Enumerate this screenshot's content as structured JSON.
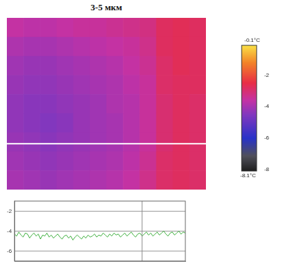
{
  "chart_data": [
    {
      "type": "heatmap",
      "title": "3-5 мкм",
      "cells": [
        [
          -3.6,
          -3.7,
          -3.7,
          -3.6,
          -3.5,
          -3.5,
          -3.4,
          -3.3,
          -3.2,
          -2.8,
          -2.7,
          -2.8
        ],
        [
          -3.9,
          -4.0,
          -4.0,
          -3.9,
          -3.8,
          -3.7,
          -3.6,
          -3.5,
          -3.3,
          -2.8,
          -2.7,
          -2.8
        ],
        [
          -4.1,
          -4.2,
          -4.2,
          -4.1,
          -4.0,
          -3.9,
          -3.8,
          -3.6,
          -3.4,
          -2.9,
          -2.7,
          -2.8
        ],
        [
          -4.2,
          -4.3,
          -4.3,
          -4.2,
          -4.1,
          -4.0,
          -3.9,
          -3.7,
          -3.5,
          -2.9,
          -2.8,
          -2.8
        ],
        [
          -4.3,
          -4.4,
          -4.4,
          -4.3,
          -4.2,
          -4.1,
          -3.9,
          -3.8,
          -3.5,
          -3.0,
          -2.8,
          -2.9
        ],
        [
          -4.3,
          -4.4,
          -4.5,
          -4.4,
          -4.2,
          -4.1,
          -4.0,
          -3.8,
          -3.5,
          -3.0,
          -2.8,
          -2.9
        ],
        [
          -4.2,
          -4.3,
          -4.4,
          -4.3,
          -4.2,
          -4.1,
          -4.0,
          -3.8,
          -3.5,
          -3.0,
          -2.8,
          -2.9
        ],
        [
          -4.1,
          -4.2,
          -4.3,
          -4.2,
          -4.1,
          -4.0,
          -3.9,
          -3.7,
          -3.4,
          -2.9,
          -2.8,
          -2.9
        ],
        [
          -4.0,
          -4.1,
          -4.2,
          -4.1,
          -4.0,
          -3.9,
          -3.8,
          -3.6,
          -3.3,
          -2.9,
          -2.8,
          -2.9
        ]
      ],
      "profile_row": 6.6,
      "colorbar": {
        "range": [
          -8.1,
          -0.1
        ],
        "ticks": [
          -2,
          -4,
          -6,
          -8
        ],
        "max_label": "-0.1°C",
        "min_label": "-8.1°C"
      }
    },
    {
      "type": "line",
      "x": [
        0,
        1,
        2,
        3,
        4,
        5,
        6,
        7,
        8,
        9,
        10,
        11,
        12,
        13,
        14,
        15,
        16,
        17,
        18,
        19,
        20,
        21,
        22,
        23,
        24,
        25,
        26,
        27,
        28,
        29,
        30,
        31,
        32,
        33,
        34,
        35,
        36,
        37,
        38,
        39,
        40,
        41,
        42,
        43,
        44,
        45,
        46,
        47,
        48,
        49,
        50,
        51,
        52,
        53,
        54,
        55,
        56,
        57,
        58,
        59,
        60,
        61,
        62,
        63,
        64,
        65,
        66,
        67,
        68,
        69,
        70,
        71,
        72,
        73,
        74,
        75,
        76,
        77,
        78,
        79
      ],
      "values": [
        -4.3,
        -4.5,
        -4.1,
        -4.4,
        -4.6,
        -4.2,
        -4.3,
        -4.7,
        -4.4,
        -4.2,
        -4.5,
        -4.3,
        -4.8,
        -4.4,
        -4.5,
        -4.2,
        -4.6,
        -4.4,
        -4.7,
        -4.5,
        -4.3,
        -4.6,
        -4.8,
        -4.5,
        -4.4,
        -4.7,
        -4.5,
        -4.9,
        -4.6,
        -4.4,
        -4.6,
        -4.8,
        -4.5,
        -4.7,
        -4.4,
        -4.6,
        -4.5,
        -4.3,
        -4.6,
        -4.4,
        -4.5,
        -4.2,
        -4.4,
        -4.6,
        -4.3,
        -4.5,
        -4.2,
        -4.4,
        -4.3,
        -4.6,
        -4.4,
        -4.2,
        -4.5,
        -4.3,
        -4.1,
        -4.4,
        -4.6,
        -4.3,
        -4.2,
        -4.5,
        -4.3,
        -4.1,
        -4.4,
        -4.2,
        -4.5,
        -4.3,
        -4.1,
        -4.4,
        -4.2,
        -4.0,
        -4.3,
        -4.5,
        -4.2,
        -4.1,
        -4.4,
        -4.2,
        -4.0,
        -4.3,
        -4.1,
        -4.2
      ],
      "color": "#3cae3c",
      "xlim": [
        0,
        79
      ],
      "ylim": [
        -7,
        -1
      ],
      "yticks": [
        -6,
        -4,
        -2
      ],
      "grid": true,
      "tick_labels": "y",
      "cursor_x": 59
    }
  ]
}
